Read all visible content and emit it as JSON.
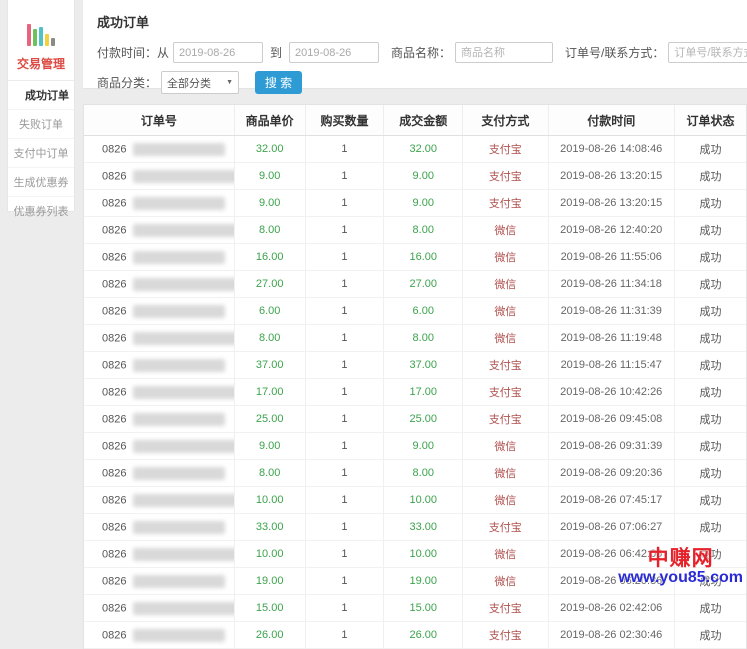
{
  "sidebar": {
    "title": "交易管理",
    "logo_bars": [
      {
        "color": "#e8637c",
        "height": 22
      },
      {
        "color": "#6fc15e",
        "height": 17
      },
      {
        "color": "#4fc3c3",
        "height": 19
      },
      {
        "color": "#f2d13e",
        "height": 12
      },
      {
        "color": "#8a8a8a",
        "height": 8
      }
    ],
    "items": [
      {
        "label": "成功订单",
        "active": true
      },
      {
        "label": "失败订单",
        "active": false
      },
      {
        "label": "支付中订单",
        "active": false
      },
      {
        "label": "生成优惠券",
        "active": false
      },
      {
        "label": "优惠券列表",
        "active": false
      }
    ]
  },
  "header": {
    "title": "成功订单"
  },
  "filters": {
    "pay_time_label": "付款时间：从",
    "from_value": "2019-08-26",
    "to_label": "到",
    "to_value": "2019-08-26",
    "product_name_label": "商品名称：",
    "product_name_placeholder": "商品名称",
    "order_contact_label": "订单号/联系方式：",
    "order_contact_placeholder": "订单号/联系方式",
    "category_label": "商品分类：",
    "category_value": "全部分类",
    "dropdown_icon": "▼",
    "search_label": "搜 索"
  },
  "table": {
    "columns": [
      "订单号",
      "商品单价",
      "购买数量",
      "成交金额",
      "支付方式",
      "付款时间",
      "订单状态"
    ],
    "rows": [
      {
        "order_prefix": "0826",
        "price": "32.00",
        "qty": "1",
        "amount": "32.00",
        "method": "支付宝",
        "time": "2019-08-26 14:08:46",
        "status": "成功"
      },
      {
        "order_prefix": "0826",
        "price": "9.00",
        "qty": "1",
        "amount": "9.00",
        "method": "支付宝",
        "time": "2019-08-26 13:20:15",
        "status": "成功"
      },
      {
        "order_prefix": "0826",
        "price": "9.00",
        "qty": "1",
        "amount": "9.00",
        "method": "支付宝",
        "time": "2019-08-26 13:20:15",
        "status": "成功"
      },
      {
        "order_prefix": "0826",
        "price": "8.00",
        "qty": "1",
        "amount": "8.00",
        "method": "微信",
        "time": "2019-08-26 12:40:20",
        "status": "成功"
      },
      {
        "order_prefix": "0826",
        "price": "16.00",
        "qty": "1",
        "amount": "16.00",
        "method": "微信",
        "time": "2019-08-26 11:55:06",
        "status": "成功"
      },
      {
        "order_prefix": "0826",
        "price": "27.00",
        "qty": "1",
        "amount": "27.00",
        "method": "微信",
        "time": "2019-08-26 11:34:18",
        "status": "成功"
      },
      {
        "order_prefix": "0826",
        "price": "6.00",
        "qty": "1",
        "amount": "6.00",
        "method": "微信",
        "time": "2019-08-26 11:31:39",
        "status": "成功"
      },
      {
        "order_prefix": "0826",
        "price": "8.00",
        "qty": "1",
        "amount": "8.00",
        "method": "微信",
        "time": "2019-08-26 11:19:48",
        "status": "成功"
      },
      {
        "order_prefix": "0826",
        "price": "37.00",
        "qty": "1",
        "amount": "37.00",
        "method": "支付宝",
        "time": "2019-08-26 11:15:47",
        "status": "成功"
      },
      {
        "order_prefix": "0826",
        "price": "17.00",
        "qty": "1",
        "amount": "17.00",
        "method": "支付宝",
        "time": "2019-08-26 10:42:26",
        "status": "成功"
      },
      {
        "order_prefix": "0826",
        "price": "25.00",
        "qty": "1",
        "amount": "25.00",
        "method": "支付宝",
        "time": "2019-08-26 09:45:08",
        "status": "成功"
      },
      {
        "order_prefix": "0826",
        "price": "9.00",
        "qty": "1",
        "amount": "9.00",
        "method": "微信",
        "time": "2019-08-26 09:31:39",
        "status": "成功"
      },
      {
        "order_prefix": "0826",
        "price": "8.00",
        "qty": "1",
        "amount": "8.00",
        "method": "微信",
        "time": "2019-08-26 09:20:36",
        "status": "成功"
      },
      {
        "order_prefix": "0826",
        "price": "10.00",
        "qty": "1",
        "amount": "10.00",
        "method": "微信",
        "time": "2019-08-26 07:45:17",
        "status": "成功"
      },
      {
        "order_prefix": "0826",
        "price": "33.00",
        "qty": "1",
        "amount": "33.00",
        "method": "支付宝",
        "time": "2019-08-26 07:06:27",
        "status": "成功"
      },
      {
        "order_prefix": "0826",
        "price": "10.00",
        "qty": "1",
        "amount": "10.00",
        "method": "微信",
        "time": "2019-08-26 06:42:06",
        "status": "成功"
      },
      {
        "order_prefix": "0826",
        "price": "19.00",
        "qty": "1",
        "amount": "19.00",
        "method": "微信",
        "time": "2019-08-26 06:20:36",
        "status": "成功"
      },
      {
        "order_prefix": "0826",
        "price": "15.00",
        "qty": "1",
        "amount": "15.00",
        "method": "支付宝",
        "time": "2019-08-26 02:42:06",
        "status": "成功"
      },
      {
        "order_prefix": "0826",
        "price": "26.00",
        "qty": "1",
        "amount": "26.00",
        "method": "支付宝",
        "time": "2019-08-26 02:30:46",
        "status": "成功"
      }
    ]
  },
  "watermark": {
    "line1": "中赚网",
    "line2": "www.you85.com"
  },
  "colors": {
    "accent_blue": "#2e9bd5",
    "brand_red": "#dd4b44",
    "price_green": "#3ca34c",
    "payment_red": "#b0524f",
    "watermark_red": "#e62129",
    "watermark_blue": "#2b2bd5"
  }
}
